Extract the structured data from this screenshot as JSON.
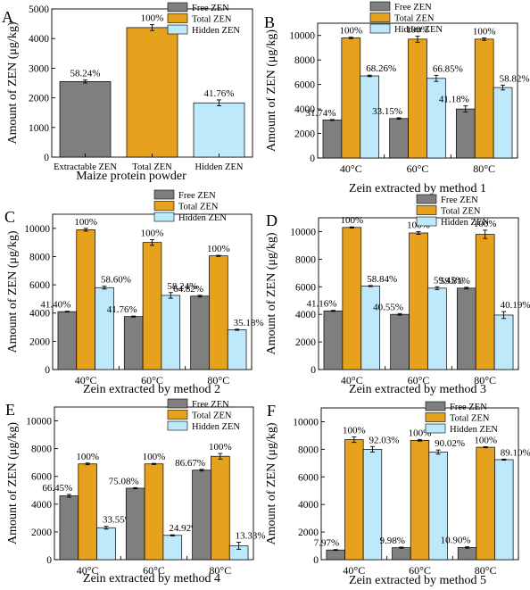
{
  "colors": {
    "free": "#7f7f7f",
    "total": "#e6a21c",
    "hidden": "#bde9fb"
  },
  "chart_data": [
    {
      "panel": "A",
      "type": "bar",
      "categories": [
        "Extractable ZEN",
        "Total ZEN",
        "Hidden ZEN"
      ],
      "values": [
        2550,
        4370,
        1830
      ],
      "errors": [
        50,
        100,
        100
      ],
      "bar_colors": [
        "free",
        "total",
        "hidden"
      ],
      "labels": [
        "58.24%",
        "100%",
        "41.76%"
      ],
      "legend": [
        "Free ZEN",
        "Total ZEN",
        "Hidden ZEN"
      ],
      "xlabel": "Maize protein powder",
      "ylabel": "Amount of ZEN (μg/kg)",
      "ylim": [
        0,
        5000
      ],
      "yticks": [
        0,
        1000,
        2000,
        3000,
        4000,
        5000
      ]
    },
    {
      "panel": "B",
      "type": "bar",
      "categories": [
        "40°C",
        "60°C",
        "80°C"
      ],
      "series": [
        {
          "name": "Free ZEN",
          "values": [
            3100,
            3220,
            4000
          ],
          "errors": [
            40,
            60,
            250
          ],
          "labels": [
            "31.74%",
            "33.15%",
            "41.18%"
          ]
        },
        {
          "name": "Total ZEN",
          "values": [
            9800,
            9700,
            9700
          ],
          "errors": [
            60,
            250,
            100
          ],
          "labels": [
            "100%",
            "100%",
            "100%"
          ]
        },
        {
          "name": "Hidden ZEN",
          "values": [
            6700,
            6500,
            5750
          ],
          "errors": [
            60,
            250,
            200
          ],
          "labels": [
            "68.26%",
            "66.85%",
            "58.82%"
          ]
        }
      ],
      "xlabel": "Zein extracted by method 1",
      "ylabel": "Amount of ZEN (μg/kg)",
      "ylim": [
        0,
        11000
      ],
      "yticks": [
        0,
        2000,
        4000,
        6000,
        8000,
        10000
      ]
    },
    {
      "panel": "C",
      "type": "bar",
      "categories": [
        "40°C",
        "60°C",
        "80°C"
      ],
      "series": [
        {
          "name": "Free ZEN",
          "values": [
            4100,
            3750,
            5200
          ],
          "errors": [
            30,
            40,
            60
          ],
          "labels": [
            "41.40%",
            "41.76%",
            "64.82%"
          ]
        },
        {
          "name": "Total ZEN",
          "values": [
            9900,
            9000,
            8050
          ],
          "errors": [
            100,
            200,
            40
          ],
          "labels": [
            "100%",
            "100%",
            "100%"
          ]
        },
        {
          "name": "Hidden ZEN",
          "values": [
            5800,
            5250,
            2820
          ],
          "errors": [
            100,
            200,
            40
          ],
          "labels": [
            "58.60%",
            "58.24%",
            "35.18%"
          ]
        }
      ],
      "xlabel": "Zein extracted by method 2",
      "ylabel": "Amount of ZEN (μg/kg)",
      "ylim": [
        0,
        11000
      ],
      "yticks": [
        0,
        2000,
        4000,
        6000,
        8000,
        10000
      ]
    },
    {
      "panel": "D",
      "type": "bar",
      "categories": [
        "40°C",
        "60°C",
        "80°C"
      ],
      "series": [
        {
          "name": "Free ZEN",
          "values": [
            4250,
            4000,
            5900
          ],
          "errors": [
            40,
            60,
            60
          ],
          "labels": [
            "41.16%",
            "40.55%",
            "59.81%"
          ]
        },
        {
          "name": "Total ZEN",
          "values": [
            10300,
            9900,
            9800
          ],
          "errors": [
            40,
            100,
            300
          ],
          "labels": [
            "100%",
            "100%",
            "100%"
          ]
        },
        {
          "name": "Hidden ZEN",
          "values": [
            6050,
            5900,
            3950
          ],
          "errors": [
            40,
            100,
            250
          ],
          "labels": [
            "58.84%",
            "59.45%",
            "40.19%"
          ]
        }
      ],
      "xlabel": "Zein extracted by method 3",
      "ylabel": "Amount of ZEN (μg/kg)",
      "ylim": [
        0,
        11000
      ],
      "yticks": [
        0,
        2000,
        4000,
        6000,
        8000,
        10000
      ]
    },
    {
      "panel": "E",
      "type": "bar",
      "categories": [
        "40°C",
        "60°C",
        "80°C"
      ],
      "series": [
        {
          "name": "Free ZEN",
          "values": [
            4600,
            5150,
            6450
          ],
          "errors": [
            100,
            40,
            60
          ],
          "labels": [
            "66.45%",
            "75.08%",
            "86.67%"
          ]
        },
        {
          "name": "Total ZEN",
          "values": [
            6900,
            6900,
            7450
          ],
          "errors": [
            60,
            40,
            200
          ],
          "labels": [
            "100%",
            "100%",
            "100%"
          ]
        },
        {
          "name": "Hidden ZEN",
          "values": [
            2300,
            1750,
            1000
          ],
          "errors": [
            100,
            40,
            250
          ],
          "labels": [
            "33.55%",
            "24.92%",
            "13.33%"
          ]
        }
      ],
      "xlabel": "Zein extracted by method 4",
      "ylabel": "Amount of ZEN (μg/kg)",
      "ylim": [
        0,
        11000
      ],
      "yticks": [
        0,
        2000,
        4000,
        6000,
        8000,
        10000
      ]
    },
    {
      "panel": "F",
      "type": "bar",
      "categories": [
        "40°C",
        "60°C",
        "80°C"
      ],
      "series": [
        {
          "name": "Free ZEN",
          "values": [
            700,
            870,
            880
          ],
          "errors": [
            30,
            40,
            50
          ],
          "labels": [
            "7.97%",
            "9.98%",
            "10.90%"
          ]
        },
        {
          "name": "Total ZEN",
          "values": [
            8700,
            8650,
            8150
          ],
          "errors": [
            200,
            60,
            40
          ],
          "labels": [
            "100%",
            "100%",
            "100%"
          ]
        },
        {
          "name": "Hidden ZEN",
          "values": [
            8000,
            7800,
            7250
          ],
          "errors": [
            200,
            150,
            40
          ],
          "labels": [
            "92.03%",
            "90.02%",
            "89.10%"
          ]
        }
      ],
      "xlabel": "Zein extracted by method 5",
      "ylabel": "Amount of ZEN (μg/kg)",
      "ylim": [
        0,
        11000
      ],
      "yticks": [
        0,
        2000,
        4000,
        6000,
        8000,
        10000
      ]
    }
  ]
}
